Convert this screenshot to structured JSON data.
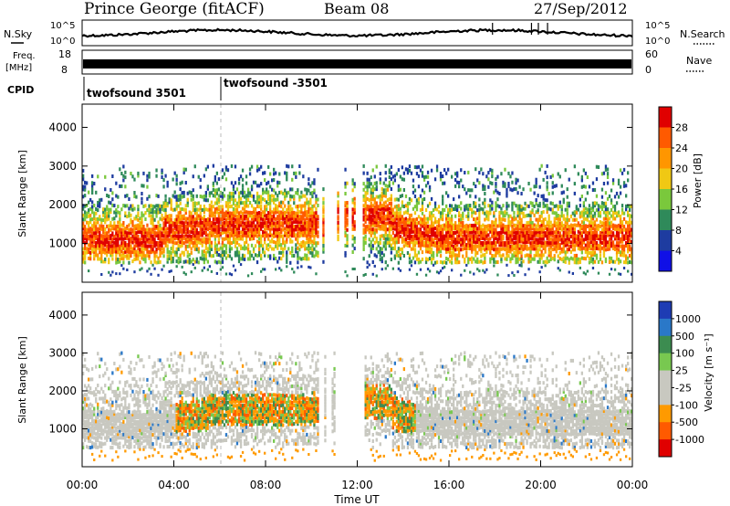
{
  "header": {
    "station": "Prince George (fitACF)",
    "beam": "Beam 08",
    "date": "27/Sep/2012"
  },
  "noise_panel": {
    "left_label": "N.Sky",
    "right_label": "N.Search",
    "left_ticks": [
      "10^5",
      "10^0"
    ],
    "right_ticks": [
      "10^5",
      "10^0"
    ]
  },
  "freq_panel": {
    "left_label_top": "Freq.",
    "left_label_bottom": "[MHz]",
    "left_ticks": [
      "18",
      "8"
    ],
    "right_label": "Nave",
    "right_ticks": [
      "60",
      "0"
    ]
  },
  "cpid": {
    "label": "CPID",
    "programs": [
      {
        "name": "twofsound 3501",
        "start_hour": 0
      },
      {
        "name": "twofsound -3501",
        "start_hour": 6
      }
    ]
  },
  "chart_data": [
    {
      "type": "heatmap",
      "title": "Power",
      "xlabel": "",
      "ylabel": "Slant Range [km]",
      "colorbar_label": "Power [dB]",
      "colorbar_ticks": [
        "28",
        "24",
        "20",
        "16",
        "12",
        "8",
        "4"
      ],
      "colorbar_colors": [
        "#e00000",
        "#ff5a00",
        "#ff9600",
        "#f0c814",
        "#7ac83c",
        "#2f8a5a",
        "#1e3ca0",
        "#1010e6"
      ],
      "y_ticks": [
        "4000",
        "3000",
        "2000",
        "1000"
      ],
      "ylim": [
        0,
        4600
      ],
      "xlim_hours": [
        0,
        24
      ]
    },
    {
      "type": "heatmap",
      "title": "Velocity",
      "xlabel": "Time UT",
      "ylabel": "Slant Range [km]",
      "colorbar_label": "Velocity  [m s⁻¹]",
      "colorbar_ticks": [
        "1000",
        "500",
        "100",
        "25",
        "-25",
        "-100",
        "-500",
        "-1000"
      ],
      "colorbar_colors": [
        "#1e3cb4",
        "#2a78c8",
        "#3c8c50",
        "#78c850",
        "#c8c8c0",
        "#c8c8c0",
        "#ff9a00",
        "#ff5a00",
        "#e00000"
      ],
      "y_ticks": [
        "4000",
        "3000",
        "2000",
        "1000"
      ],
      "ylim": [
        0,
        4600
      ],
      "xlim_hours": [
        0,
        24
      ],
      "x_ticks": [
        "00:00",
        "04:00",
        "08:00",
        "12:00",
        "16:00",
        "20:00",
        "00:00"
      ]
    }
  ]
}
